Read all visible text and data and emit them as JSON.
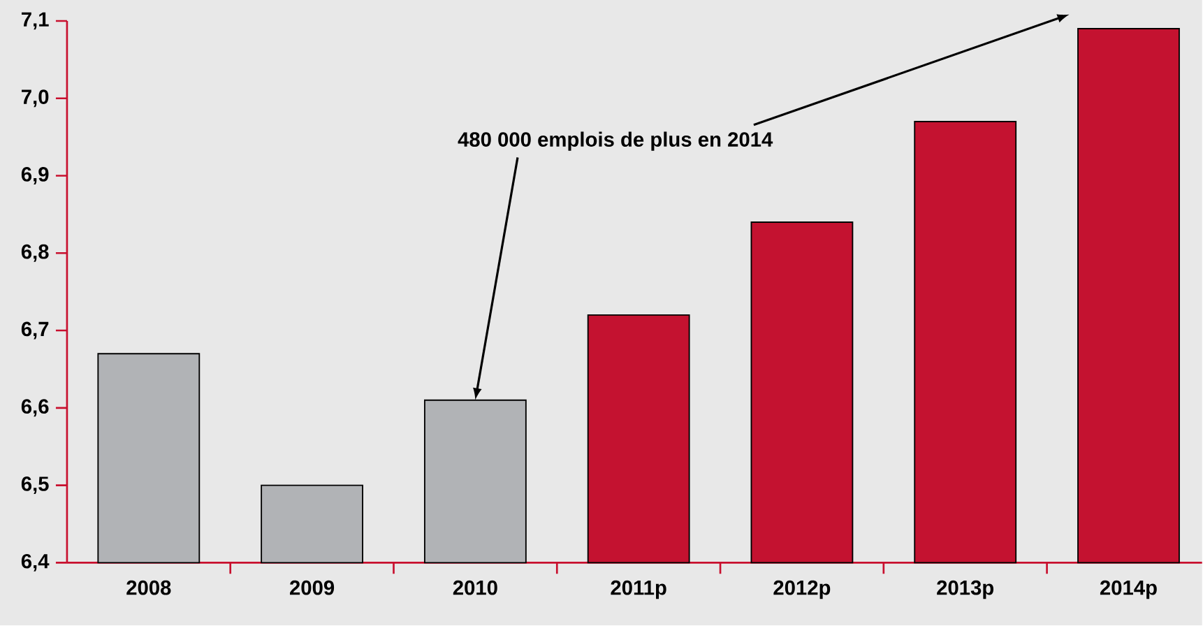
{
  "chart_data": {
    "type": "bar",
    "categories": [
      "2008",
      "2009",
      "2010",
      "2011p",
      "2012p",
      "2013p",
      "2014p"
    ],
    "values": [
      6.67,
      6.5,
      6.61,
      6.72,
      6.84,
      6.97,
      7.09
    ],
    "colors": [
      "#b1b3b6",
      "#b1b3b6",
      "#b1b3b6",
      "#c41230",
      "#c41230",
      "#c41230",
      "#c41230"
    ],
    "ylim": [
      6.4,
      7.1
    ],
    "yticks": [
      {
        "value": 6.4,
        "label": "6,4"
      },
      {
        "value": 6.5,
        "label": "6,5"
      },
      {
        "value": 6.6,
        "label": "6,6"
      },
      {
        "value": 6.7,
        "label": "6,7"
      },
      {
        "value": 6.8,
        "label": "6,8"
      },
      {
        "value": 6.9,
        "label": "6,9"
      },
      {
        "value": 7.0,
        "label": "7,0"
      },
      {
        "value": 7.1,
        "label": "7,1"
      }
    ],
    "annotations": [
      {
        "text": "480 000 emplois de plus en 2014",
        "x": "2010",
        "y": 6.61
      }
    ],
    "grid": false
  }
}
